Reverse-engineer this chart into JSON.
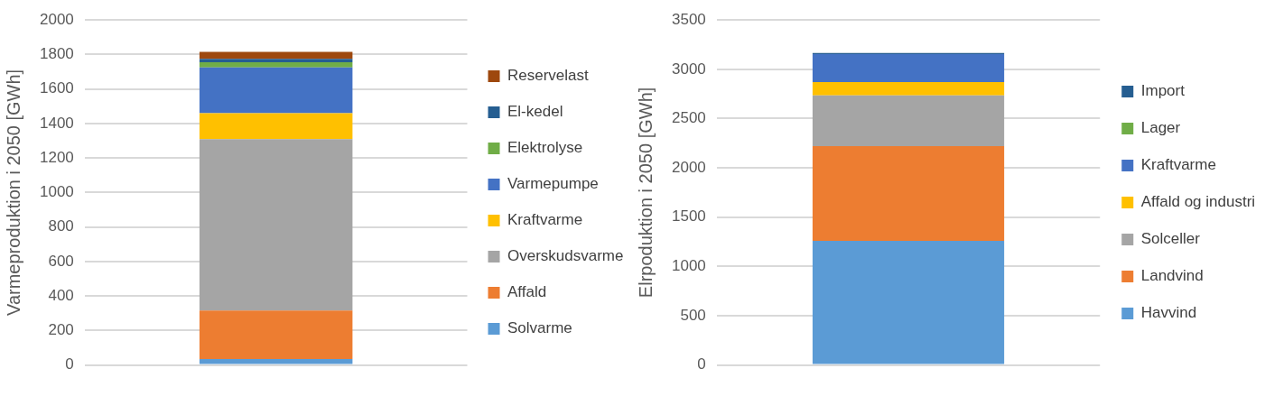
{
  "chart_data": [
    {
      "type": "bar",
      "ylabel": "Varmeproduktion i 2050 [GWh]",
      "categories": [
        null
      ],
      "stacked": true,
      "ylim": [
        0,
        2000
      ],
      "yticks": [
        0,
        200,
        400,
        600,
        800,
        1000,
        1200,
        1400,
        1600,
        1800,
        2000
      ],
      "grid": "y",
      "legend": "right",
      "series": [
        {
          "name": "Solvarme",
          "color": "#5b9bd5",
          "values": [
            35
          ]
        },
        {
          "name": "Affald",
          "color": "#ed7d31",
          "values": [
            280
          ]
        },
        {
          "name": "Overskudsvarme",
          "color": "#a5a5a5",
          "values": [
            995
          ]
        },
        {
          "name": "Kraftvarme",
          "color": "#ffc000",
          "values": [
            150
          ]
        },
        {
          "name": "Varmepumpe",
          "color": "#4472c4",
          "values": [
            265
          ]
        },
        {
          "name": "Elektrolyse",
          "color": "#70ad47",
          "values": [
            30
          ]
        },
        {
          "name": "El-kedel",
          "color": "#255e91",
          "values": [
            20
          ]
        },
        {
          "name": "Reservelast",
          "color": "#9e480e",
          "values": [
            40
          ]
        }
      ]
    },
    {
      "type": "bar",
      "ylabel": "Elrpoduktion i 2050 [GWh]",
      "categories": [
        null
      ],
      "stacked": true,
      "ylim": [
        0,
        3500
      ],
      "yticks": [
        0,
        500,
        1000,
        1500,
        2000,
        2500,
        3000,
        3500
      ],
      "grid": "y",
      "legend": "right",
      "series": [
        {
          "name": "Havvind",
          "color": "#5b9bd5",
          "values": [
            1260
          ]
        },
        {
          "name": "Landvind",
          "color": "#ed7d31",
          "values": [
            960
          ]
        },
        {
          "name": "Solceller",
          "color": "#a5a5a5",
          "values": [
            515
          ]
        },
        {
          "name": "Affald og industri",
          "color": "#ffc000",
          "values": [
            135
          ]
        },
        {
          "name": "Kraftvarme",
          "color": "#4472c4",
          "values": [
            285
          ]
        },
        {
          "name": "Lager",
          "color": "#70ad47",
          "values": [
            0
          ]
        },
        {
          "name": "Import",
          "color": "#255e91",
          "values": [
            10
          ]
        }
      ]
    }
  ]
}
